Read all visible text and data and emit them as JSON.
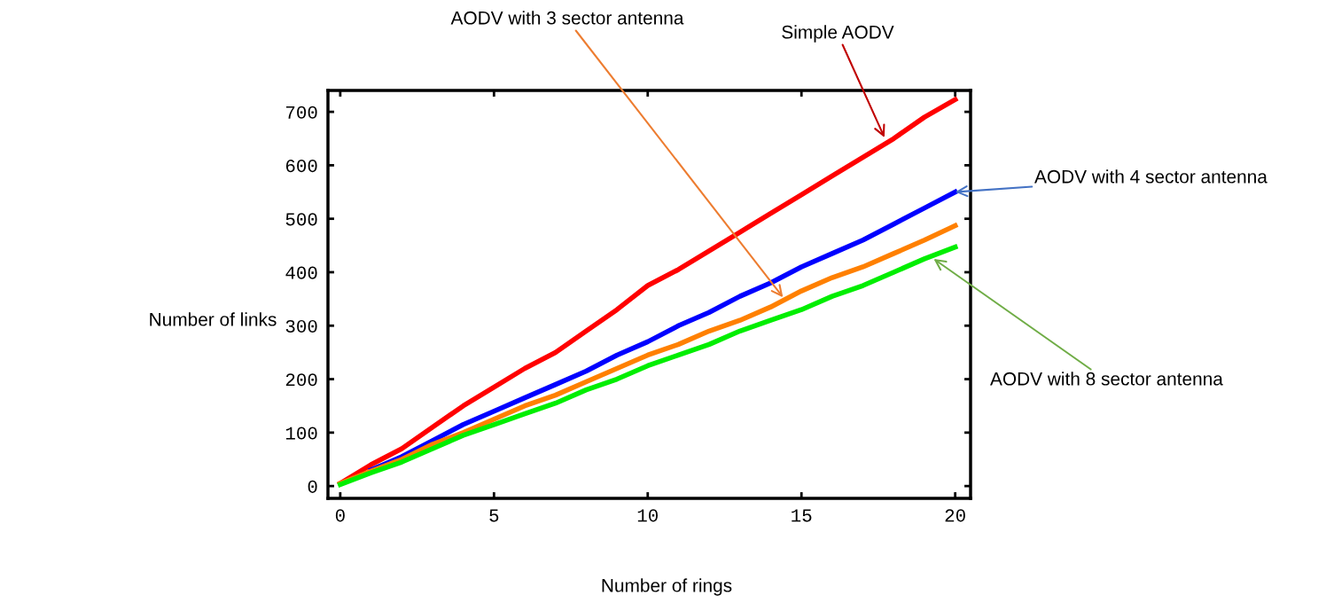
{
  "chart_data": {
    "type": "line",
    "xlabel": "Number of rings",
    "ylabel": "Number of links",
    "x": [
      0,
      1,
      2,
      3,
      4,
      5,
      6,
      7,
      8,
      9,
      10,
      11,
      12,
      13,
      14,
      15,
      16,
      17,
      18,
      19,
      20
    ],
    "series": [
      {
        "color": "#ff0000",
        "values": [
          5,
          40,
          70,
          110,
          150,
          185,
          220,
          250,
          290,
          330,
          375,
          405,
          440,
          475,
          510,
          545,
          580,
          615,
          650,
          690,
          723
        ]
      },
      {
        "color": "#0000ff",
        "values": [
          null,
          30,
          55,
          85,
          115,
          140,
          165,
          190,
          215,
          245,
          270,
          300,
          325,
          355,
          380,
          410,
          435,
          460,
          490,
          520,
          550
        ]
      },
      {
        "color": "#ff8000",
        "values": [
          5,
          28,
          50,
          78,
          100,
          125,
          150,
          170,
          195,
          220,
          245,
          265,
          290,
          310,
          335,
          365,
          390,
          410,
          435,
          460,
          487
        ]
      },
      {
        "color": "#00ee00",
        "values": [
          3,
          25,
          45,
          70,
          95,
          115,
          135,
          155,
          180,
          200,
          225,
          245,
          265,
          290,
          310,
          330,
          355,
          375,
          400,
          425,
          447
        ]
      }
    ],
    "xlim": [
      -0.4,
      20.5
    ],
    "ylim": [
      -23,
      740
    ],
    "xticks": [
      0,
      5,
      10,
      15,
      20
    ],
    "yticks": [
      0,
      100,
      200,
      300,
      400,
      500,
      600,
      700
    ],
    "grid": false,
    "legend": false,
    "line_style": "solid",
    "marker": "none",
    "annotations": [
      {
        "text": "AODV with 3 sector antenna",
        "x": 14.4,
        "y": 353
      },
      {
        "text": "Simple AODV",
        "x": 17.7,
        "y": 652
      },
      {
        "text": "AODV with 4 sector antenna",
        "x": 20,
        "y": 550
      },
      {
        "text": "AODV with 8 sector antenna",
        "x": 19.3,
        "y": 425
      }
    ]
  }
}
